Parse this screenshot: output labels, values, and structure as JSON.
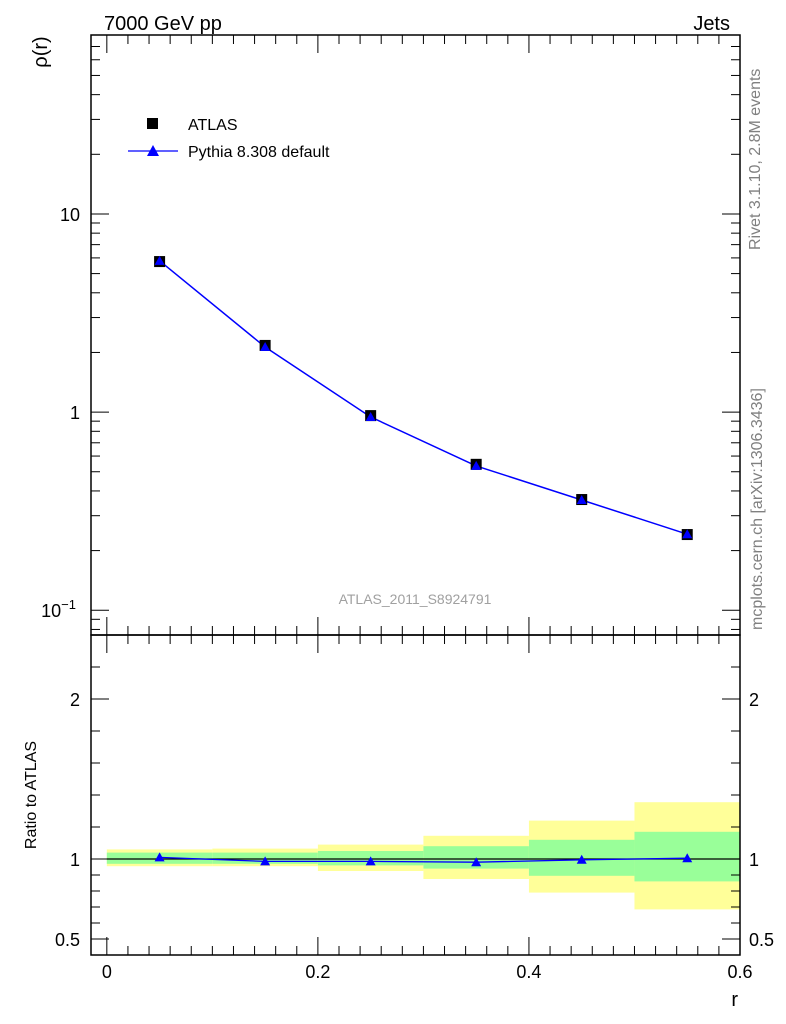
{
  "header": {
    "left": "7000 GeV pp",
    "right": "Jets"
  },
  "side_labels": {
    "rivet": "Rivet 3.1.10,  2.8M events",
    "source": "mcplots.cern.ch [arXiv:1306.3436]"
  },
  "colors": {
    "data_marker": "#000000",
    "mc_line": "#0000ff",
    "band_inner": "#99ff99",
    "band_outer": "#ffff99"
  },
  "chart_data": {
    "type": "line",
    "analysis_label": "ATLAS_2011_S8924791",
    "main_panel": {
      "ylabel": "ρ(r)",
      "yscale": "log",
      "ylim": [
        0.075,
        80
      ],
      "yticks": [
        {
          "value": 0.1,
          "base": "10",
          "exp": "−1"
        },
        {
          "value": 1,
          "label": "1"
        },
        {
          "value": 10,
          "label": "10"
        }
      ],
      "legend": {
        "placement": "top-left",
        "entries": [
          "ATLAS",
          "Pythia 8.308 default"
        ]
      },
      "series": [
        {
          "name": "ATLAS",
          "marker": "square",
          "x": [
            0.05,
            0.15,
            0.25,
            0.35,
            0.45,
            0.55
          ],
          "y": [
            5.75,
            2.17,
            0.96,
            0.545,
            0.362,
            0.241
          ]
        },
        {
          "name": "Pythia 8.308 default",
          "marker": "triangle",
          "x": [
            0.05,
            0.15,
            0.25,
            0.35,
            0.45,
            0.55
          ],
          "y": [
            5.8,
            2.13,
            0.945,
            0.535,
            0.36,
            0.242
          ]
        }
      ]
    },
    "ratio_panel": {
      "ylabel": "Ratio to ATLAS",
      "ylim": [
        0.4,
        2.4
      ],
      "yticks": [
        0.5,
        1,
        2
      ],
      "bins": [
        [
          0.0,
          0.1
        ],
        [
          0.1,
          0.2
        ],
        [
          0.2,
          0.3
        ],
        [
          0.3,
          0.4
        ],
        [
          0.4,
          0.5
        ],
        [
          0.5,
          0.6
        ]
      ],
      "band_inner": [
        [
          0.97,
          1.04
        ],
        [
          0.97,
          1.04
        ],
        [
          0.96,
          1.05
        ],
        [
          0.94,
          1.08
        ],
        [
          0.895,
          1.12
        ],
        [
          0.86,
          1.17
        ]
      ],
      "band_outer": [
        [
          0.955,
          1.06
        ],
        [
          0.955,
          1.065
        ],
        [
          0.925,
          1.09
        ],
        [
          0.875,
          1.145
        ],
        [
          0.79,
          1.24
        ],
        [
          0.685,
          1.355
        ]
      ],
      "ratio_series": {
        "name": "Pythia 8.308 default",
        "x": [
          0.05,
          0.15,
          0.25,
          0.35,
          0.45,
          0.55
        ],
        "y": [
          1.01,
          0.985,
          0.985,
          0.98,
          0.995,
          1.005
        ]
      }
    },
    "x_axis": {
      "label": "r",
      "xlim": [
        -0.015,
        0.6
      ],
      "ticks": [
        {
          "value": 0,
          "label": "0"
        },
        {
          "value": 0.2,
          "label": "0.2"
        },
        {
          "value": 0.4,
          "label": "0.4"
        },
        {
          "value": 0.6,
          "label": "0.6"
        }
      ]
    }
  }
}
